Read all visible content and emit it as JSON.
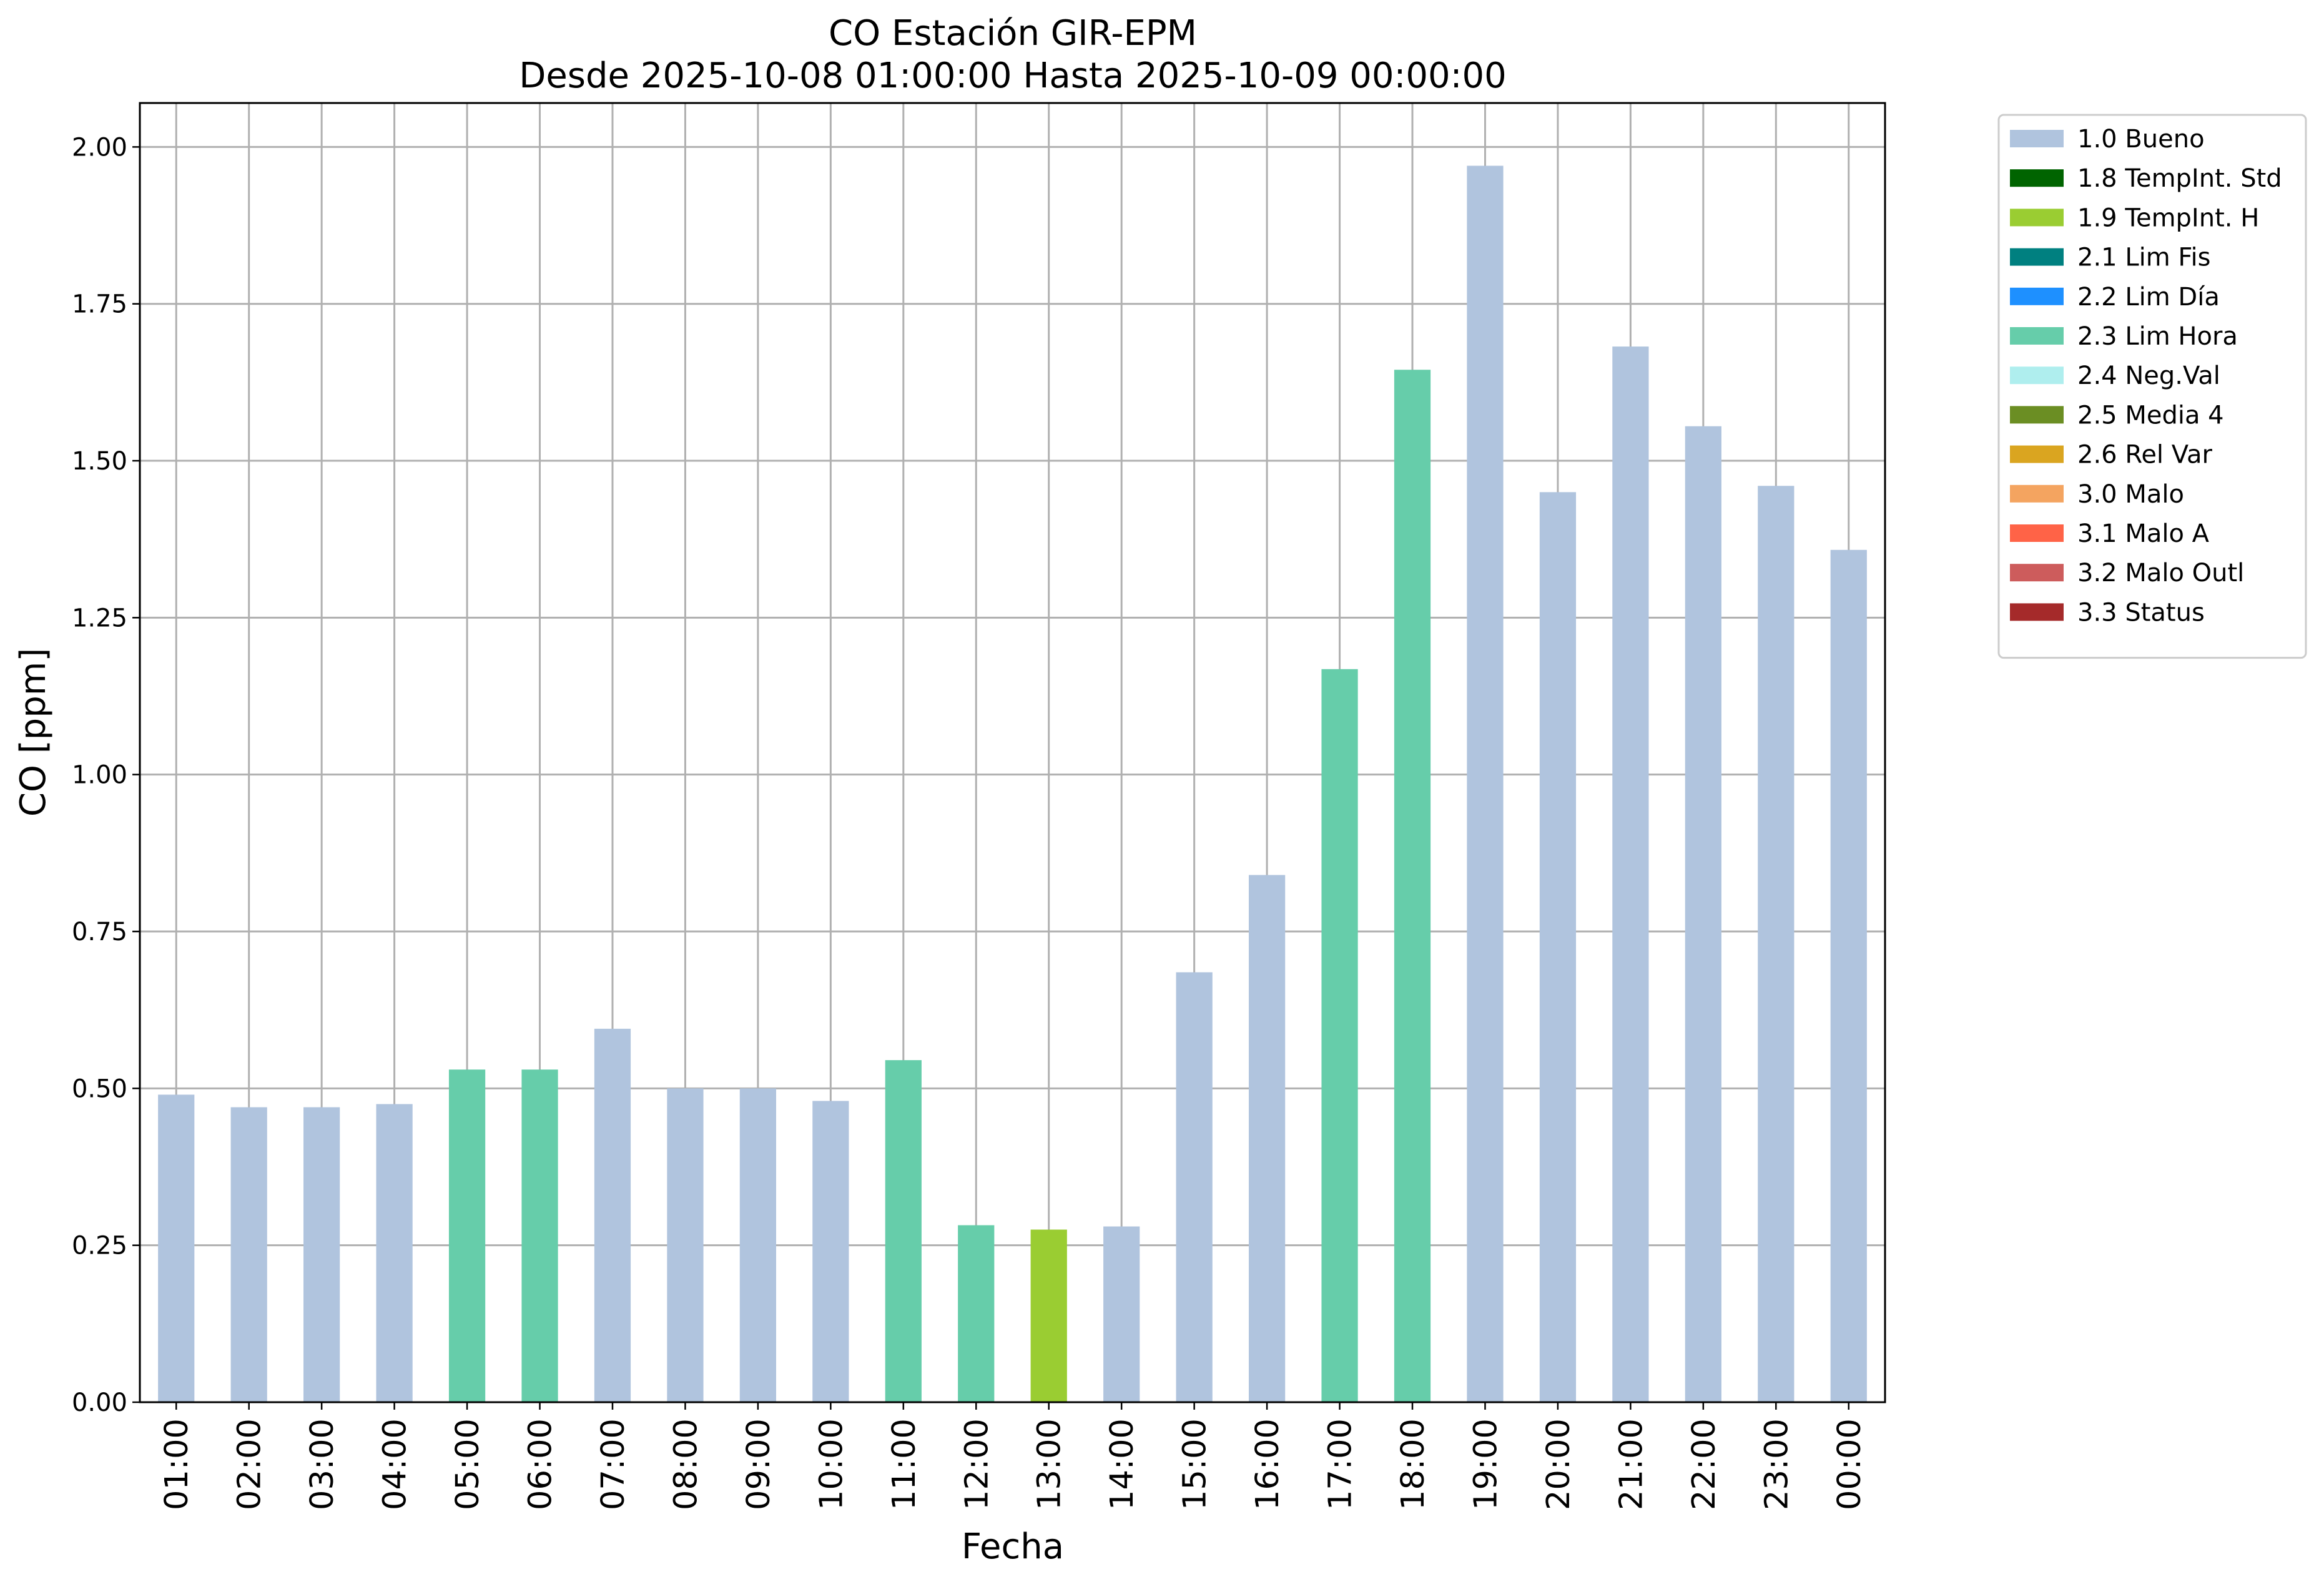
{
  "chart_data": {
    "type": "bar",
    "title": "CO Estación GIR-EPM",
    "subtitle": "Desde 2025-10-08 01:00:00 Hasta 2025-10-09 00:00:00",
    "xlabel": "Fecha",
    "ylabel": "CO [ppm]",
    "ylim": [
      0,
      2.07
    ],
    "yticks": [
      "0.00",
      "0.25",
      "0.50",
      "0.75",
      "1.00",
      "1.25",
      "1.50",
      "1.75",
      "2.00"
    ],
    "grid": true,
    "legend_placement": "outside-top-right",
    "categories": [
      "01:00",
      "02:00",
      "03:00",
      "04:00",
      "05:00",
      "06:00",
      "07:00",
      "08:00",
      "09:00",
      "10:00",
      "11:00",
      "12:00",
      "13:00",
      "14:00",
      "15:00",
      "16:00",
      "17:00",
      "18:00",
      "19:00",
      "20:00",
      "21:00",
      "22:00",
      "23:00",
      "00:00"
    ],
    "values": [
      0.49,
      0.47,
      0.47,
      0.475,
      0.53,
      0.53,
      0.595,
      0.5,
      0.5,
      0.48,
      0.545,
      0.282,
      0.275,
      0.28,
      0.685,
      0.84,
      1.168,
      1.645,
      1.97,
      1.45,
      1.682,
      1.555,
      1.46,
      1.358
    ],
    "flags": [
      "1.0 Bueno",
      "1.0 Bueno",
      "1.0 Bueno",
      "1.0 Bueno",
      "2.3 Lim Hora",
      "2.3 Lim Hora",
      "1.0 Bueno",
      "1.0 Bueno",
      "1.0 Bueno",
      "1.0 Bueno",
      "2.3 Lim Hora",
      "2.3 Lim Hora",
      "1.9 TempInt. H",
      "1.0 Bueno",
      "1.0 Bueno",
      "1.0 Bueno",
      "2.3 Lim Hora",
      "2.3 Lim Hora",
      "1.0 Bueno",
      "1.0 Bueno",
      "1.0 Bueno",
      "1.0 Bueno",
      "1.0 Bueno",
      "1.0 Bueno"
    ],
    "legend": [
      {
        "label": "1.0 Bueno",
        "color": "#b0c4de"
      },
      {
        "label": "1.8 TempInt. Std",
        "color": "#006400"
      },
      {
        "label": "1.9 TempInt. H",
        "color": "#9acd32"
      },
      {
        "label": "2.1 Lim Fis",
        "color": "#008080"
      },
      {
        "label": "2.2 Lim Día",
        "color": "#1e90ff"
      },
      {
        "label": "2.3 Lim Hora",
        "color": "#66cdaa"
      },
      {
        "label": "2.4 Neg.Val",
        "color": "#afeeee"
      },
      {
        "label": "2.5 Media 4",
        "color": "#6b8e23"
      },
      {
        "label": "2.6 Rel Var",
        "color": "#daa520"
      },
      {
        "label": "3.0 Malo",
        "color": "#f4a460"
      },
      {
        "label": "3.1 Malo A",
        "color": "#ff6347"
      },
      {
        "label": "3.2 Malo Outl",
        "color": "#cd5c5c"
      },
      {
        "label": "3.3 Status",
        "color": "#a52a2a"
      }
    ]
  }
}
